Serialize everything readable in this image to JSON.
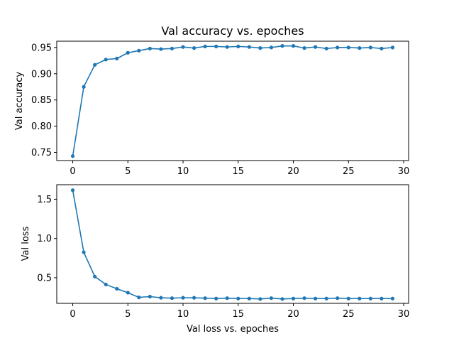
{
  "chart_data": [
    {
      "type": "line",
      "title": "Val accuracy vs. epoches",
      "xlabel": "",
      "ylabel": "Val accuracy",
      "xlim": [
        -1.45,
        30.45
      ],
      "ylim": [
        0.7345,
        0.962
      ],
      "xticks": [
        0,
        5,
        10,
        15,
        20,
        25,
        30
      ],
      "xtick_labels": [
        "0",
        "5",
        "10",
        "15",
        "20",
        "25",
        "30"
      ],
      "yticks": [
        0.75,
        0.8,
        0.85,
        0.9,
        0.95
      ],
      "ytick_labels": [
        "0.75",
        "0.80",
        "0.85",
        "0.90",
        "0.95"
      ],
      "grid": false,
      "color": "#1f77b4",
      "x": [
        0,
        1,
        2,
        3,
        4,
        5,
        6,
        7,
        8,
        9,
        10,
        11,
        12,
        13,
        14,
        15,
        16,
        17,
        18,
        19,
        20,
        21,
        22,
        23,
        24,
        25,
        26,
        27,
        28,
        29
      ],
      "series": [
        {
          "values": [
            0.743,
            0.875,
            0.917,
            0.927,
            0.929,
            0.94,
            0.944,
            0.948,
            0.947,
            0.948,
            0.951,
            0.949,
            0.952,
            0.952,
            0.951,
            0.952,
            0.951,
            0.949,
            0.95,
            0.953,
            0.953,
            0.949,
            0.951,
            0.948,
            0.95,
            0.95,
            0.949,
            0.95,
            0.948,
            0.95
          ]
        }
      ]
    },
    {
      "type": "line",
      "title": "",
      "xlabel": "Val loss vs. epoches",
      "ylabel": "Val loss",
      "xlim": [
        -1.45,
        30.45
      ],
      "ylim": [
        0.174,
        1.685
      ],
      "xticks": [
        0,
        5,
        10,
        15,
        20,
        25,
        30
      ],
      "xtick_labels": [
        "0",
        "5",
        "10",
        "15",
        "20",
        "25",
        "30"
      ],
      "yticks": [
        0.5,
        1.0,
        1.5
      ],
      "ytick_labels": [
        "0.5",
        "1.0",
        "1.5"
      ],
      "grid": false,
      "color": "#1f77b4",
      "x": [
        0,
        1,
        2,
        3,
        4,
        5,
        6,
        7,
        8,
        9,
        10,
        11,
        12,
        13,
        14,
        15,
        16,
        17,
        18,
        19,
        20,
        21,
        22,
        23,
        24,
        25,
        26,
        27,
        28,
        29
      ],
      "series": [
        {
          "values": [
            1.615,
            0.825,
            0.515,
            0.415,
            0.36,
            0.31,
            0.25,
            0.26,
            0.245,
            0.24,
            0.245,
            0.245,
            0.24,
            0.235,
            0.24,
            0.235,
            0.235,
            0.23,
            0.24,
            0.23,
            0.235,
            0.24,
            0.235,
            0.235,
            0.24,
            0.235,
            0.235,
            0.235,
            0.235,
            0.235
          ]
        }
      ]
    }
  ]
}
